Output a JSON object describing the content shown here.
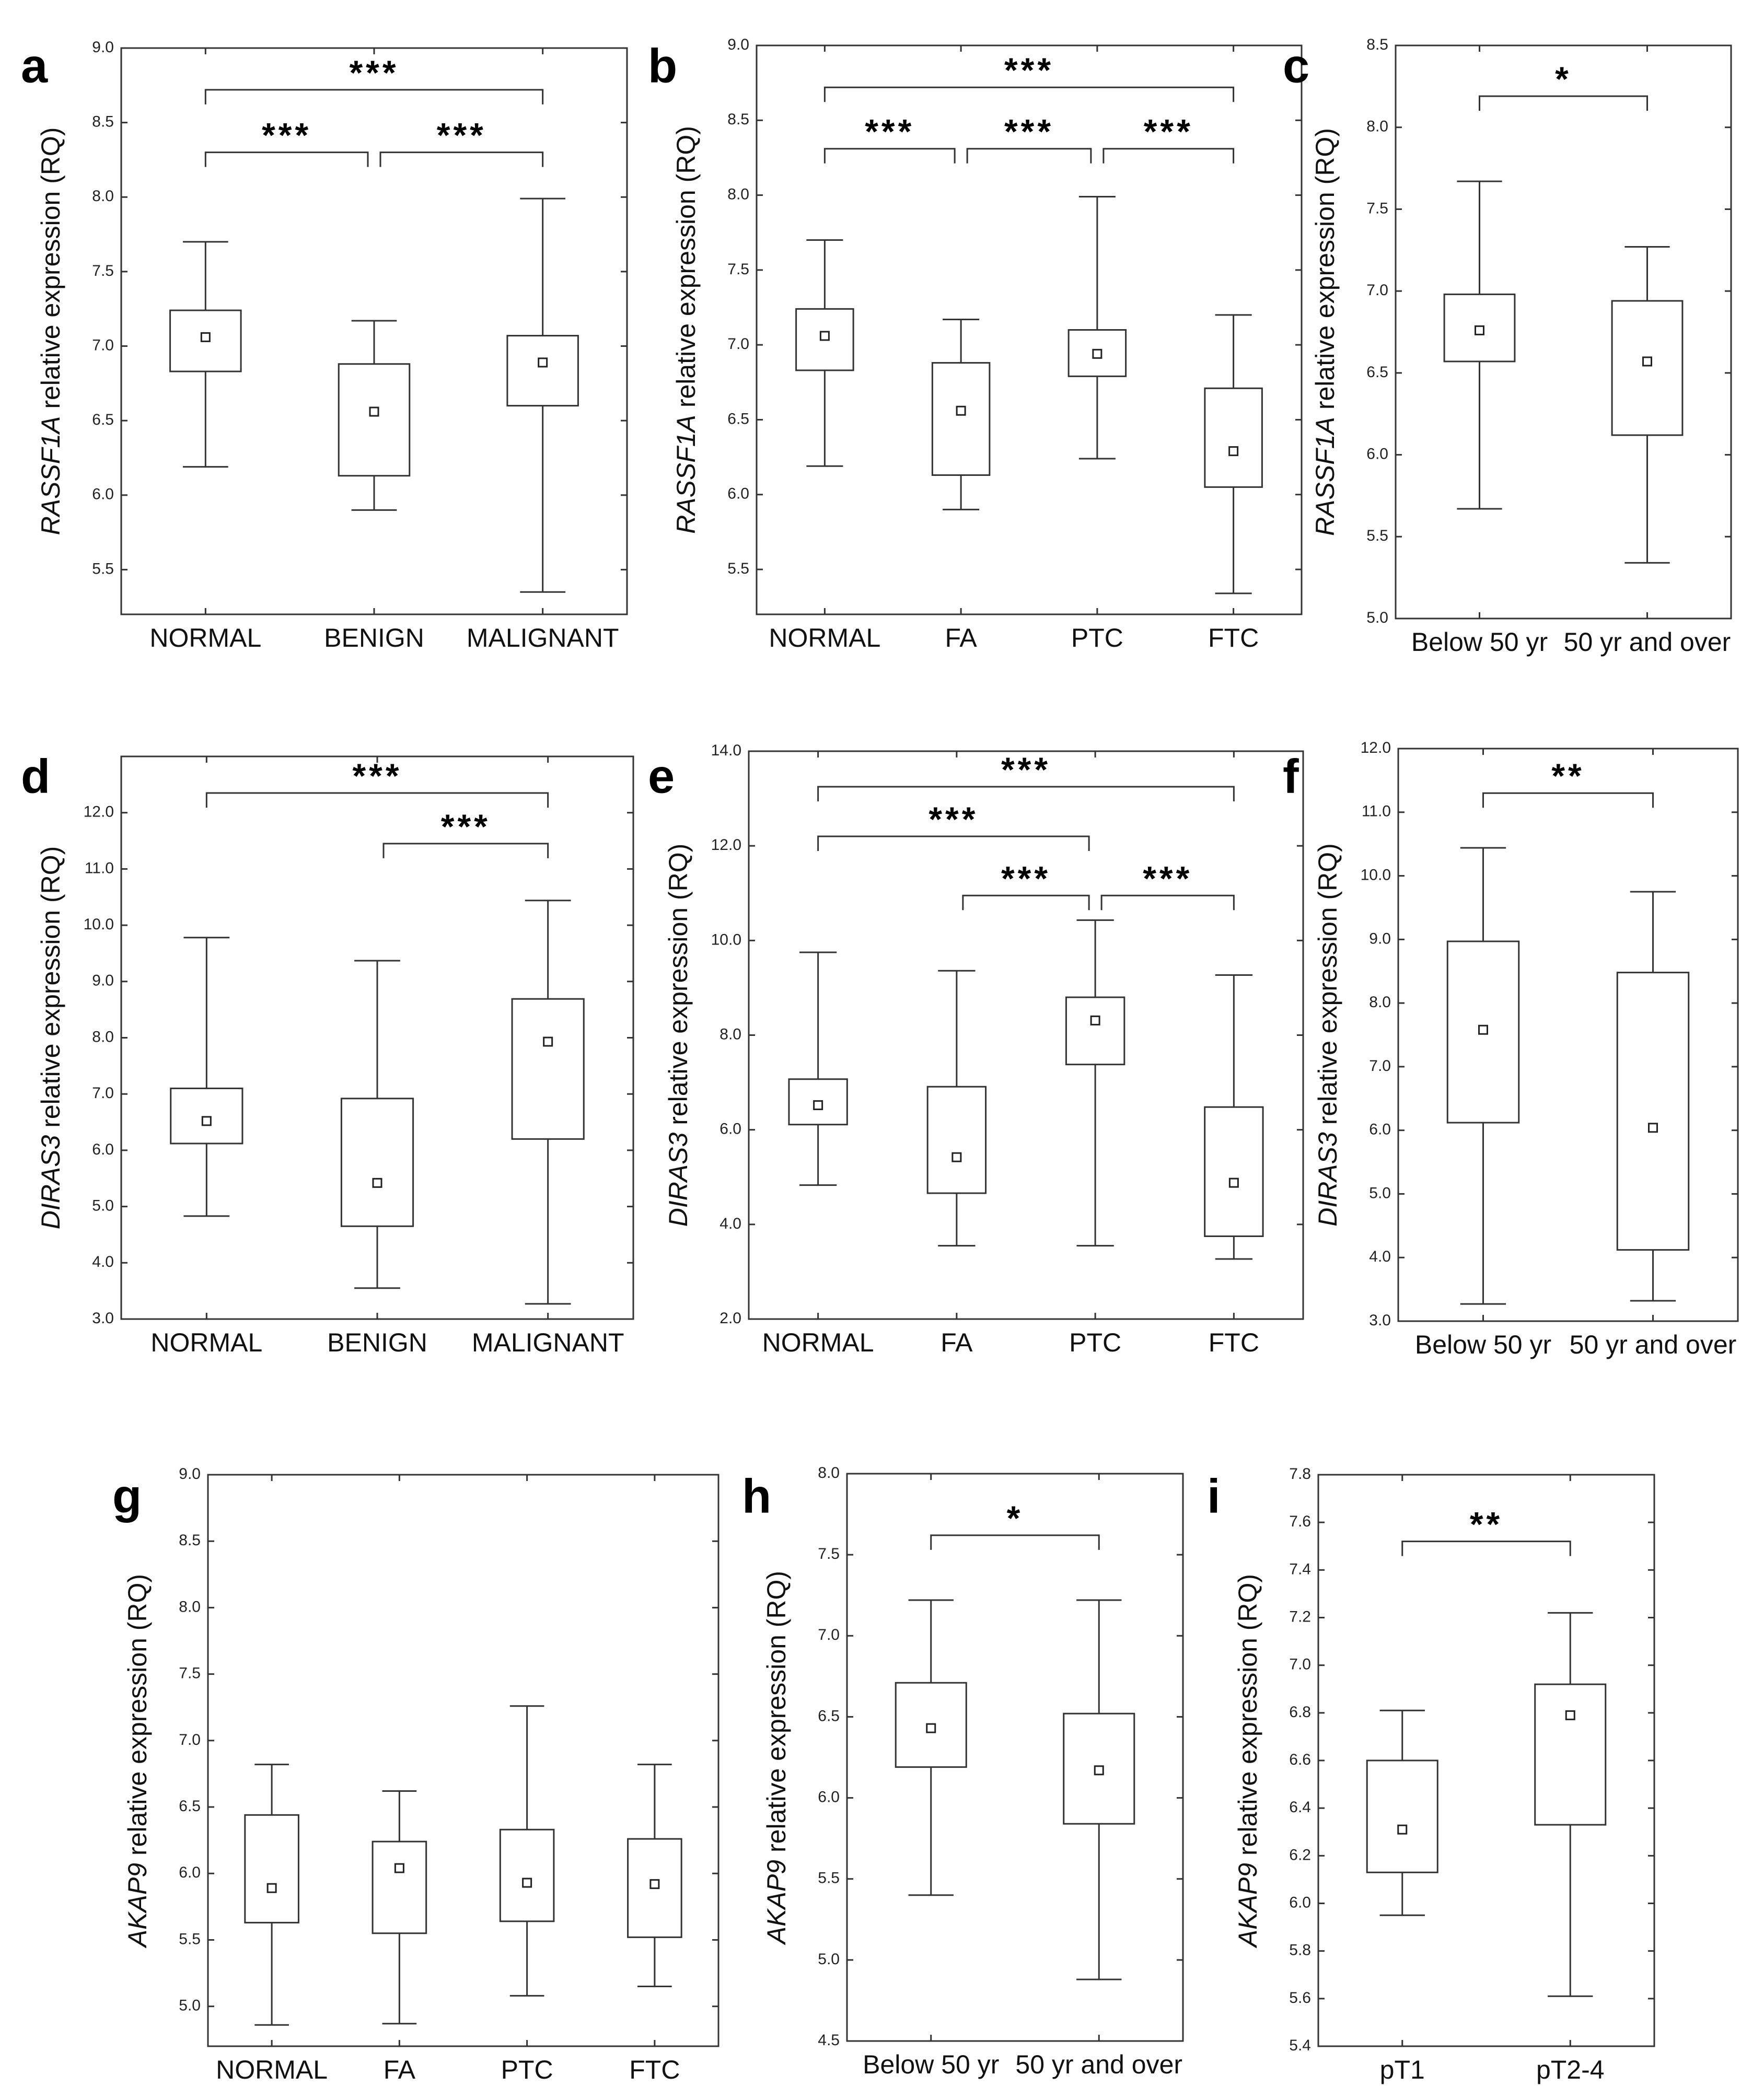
{
  "chart_data": [
    {
      "type": "box",
      "panel": "a",
      "ylabel_gene": "RASSF1A",
      "ylabel_rest": " relative expression (RQ)",
      "ylim": [
        5.2,
        9.0
      ],
      "yticks": [
        5.5,
        6.0,
        6.5,
        7.0,
        7.5,
        8.0,
        8.5,
        9.0
      ],
      "decimals": 1,
      "categories": [
        "NORMAL",
        "BENIGN",
        "MALIGNANT"
      ],
      "boxes": [
        {
          "min": 6.19,
          "q1": 6.83,
          "median": 7.06,
          "q3": 7.24,
          "max": 7.7
        },
        {
          "min": 5.9,
          "q1": 6.13,
          "median": 6.56,
          "q3": 6.88,
          "max": 7.17
        },
        {
          "min": 5.35,
          "q1": 6.6,
          "median": 6.89,
          "q3": 7.07,
          "max": 7.99
        }
      ],
      "significance": [
        {
          "from": 0,
          "to": 2,
          "label": "***",
          "y": 8.72
        },
        {
          "from": 0,
          "to": 1,
          "label": "***",
          "y": 8.3
        },
        {
          "from": 1,
          "to": 2,
          "label": "***",
          "y": 8.3
        }
      ]
    },
    {
      "type": "box",
      "panel": "b",
      "ylabel_gene": "RASSF1A",
      "ylabel_rest": " relative expression (RQ)",
      "ylim": [
        5.2,
        9.0
      ],
      "yticks": [
        5.5,
        6.0,
        6.5,
        7.0,
        7.5,
        8.0,
        8.5,
        9.0
      ],
      "decimals": 1,
      "categories": [
        "NORMAL",
        "FA",
        "PTC",
        "FTC"
      ],
      "boxes": [
        {
          "min": 6.19,
          "q1": 6.83,
          "median": 7.06,
          "q3": 7.24,
          "max": 7.7
        },
        {
          "min": 5.9,
          "q1": 6.13,
          "median": 6.56,
          "q3": 6.88,
          "max": 7.17
        },
        {
          "min": 6.24,
          "q1": 6.79,
          "median": 6.94,
          "q3": 7.1,
          "max": 7.99
        },
        {
          "min": 5.34,
          "q1": 6.05,
          "median": 6.29,
          "q3": 6.71,
          "max": 7.2
        }
      ],
      "significance": [
        {
          "from": 0,
          "to": 3,
          "label": "***",
          "y": 8.72
        },
        {
          "from": 0,
          "to": 1,
          "label": "***",
          "y": 8.31
        },
        {
          "from": 1,
          "to": 2,
          "label": "***",
          "y": 8.31
        },
        {
          "from": 2,
          "to": 3,
          "label": "***",
          "y": 8.31
        }
      ]
    },
    {
      "type": "box",
      "panel": "c",
      "ylabel_gene": "RASSF1A",
      "ylabel_rest": " relative expression (RQ)",
      "ylim": [
        5.0,
        8.5
      ],
      "yticks": [
        5.0,
        5.5,
        6.0,
        6.5,
        7.0,
        7.5,
        8.0,
        8.5
      ],
      "decimals": 1,
      "categories": [
        "Below 50 yr",
        "50 yr and over"
      ],
      "boxes": [
        {
          "min": 5.67,
          "q1": 6.57,
          "median": 6.76,
          "q3": 6.98,
          "max": 7.67
        },
        {
          "min": 5.34,
          "q1": 6.12,
          "median": 6.57,
          "q3": 6.94,
          "max": 7.27
        }
      ],
      "significance": [
        {
          "from": 0,
          "to": 1,
          "label": "*",
          "y": 8.19
        }
      ]
    },
    {
      "type": "box",
      "panel": "d",
      "ylabel_gene": "DIRAS3",
      "ylabel_rest": " relative expression (RQ)",
      "ylim": [
        3.0,
        13.0
      ],
      "yticks": [
        3.0,
        4.0,
        5.0,
        6.0,
        7.0,
        8.0,
        9.0,
        10.0,
        11.0,
        12.0
      ],
      "decimals": 1,
      "categories": [
        "NORMAL",
        "BENIGN",
        "MALIGNANT"
      ],
      "boxes": [
        {
          "min": 4.83,
          "q1": 6.12,
          "median": 6.52,
          "q3": 7.1,
          "max": 9.78
        },
        {
          "min": 3.55,
          "q1": 4.65,
          "median": 5.42,
          "q3": 6.92,
          "max": 9.37
        },
        {
          "min": 3.27,
          "q1": 6.2,
          "median": 7.93,
          "q3": 8.69,
          "max": 10.44
        }
      ],
      "significance": [
        {
          "from": 0,
          "to": 2,
          "label": "***",
          "y": 12.35
        },
        {
          "from": 1,
          "to": 2,
          "label": "***",
          "y": 11.45
        }
      ]
    },
    {
      "type": "box",
      "panel": "e",
      "ylabel_gene": "DIRAS3",
      "ylabel_rest": " relative expression (RQ)",
      "ylim": [
        2.0,
        14.0
      ],
      "yticks": [
        2.0,
        4.0,
        6.0,
        8.0,
        10.0,
        12.0,
        14.0
      ],
      "decimals": 1,
      "categories": [
        "NORMAL",
        "FA",
        "PTC",
        "FTC"
      ],
      "boxes": [
        {
          "min": 4.83,
          "q1": 6.11,
          "median": 6.52,
          "q3": 7.07,
          "max": 9.75
        },
        {
          "min": 3.55,
          "q1": 4.66,
          "median": 5.42,
          "q3": 6.91,
          "max": 9.36
        },
        {
          "min": 3.55,
          "q1": 7.38,
          "median": 8.31,
          "q3": 8.8,
          "max": 10.43
        },
        {
          "min": 3.27,
          "q1": 3.75,
          "median": 4.88,
          "q3": 6.48,
          "max": 9.27
        }
      ],
      "significance": [
        {
          "from": 0,
          "to": 3,
          "label": "***",
          "y": 13.25
        },
        {
          "from": 0,
          "to": 2,
          "label": "***",
          "y": 12.2
        },
        {
          "from": 1,
          "to": 2,
          "label": "***",
          "y": 10.95
        },
        {
          "from": 2,
          "to": 3,
          "label": "***",
          "y": 10.95
        }
      ]
    },
    {
      "type": "box",
      "panel": "f",
      "ylabel_gene": "DIRAS3",
      "ylabel_rest": " relative expression (RQ)",
      "ylim": [
        3.0,
        12.0
      ],
      "yticks": [
        3.0,
        4.0,
        5.0,
        6.0,
        7.0,
        8.0,
        9.0,
        10.0,
        11.0,
        12.0
      ],
      "decimals": 1,
      "categories": [
        "Below 50 yr",
        "50 yr and over"
      ],
      "boxes": [
        {
          "min": 3.27,
          "q1": 6.12,
          "median": 7.58,
          "q3": 8.97,
          "max": 10.44
        },
        {
          "min": 3.32,
          "q1": 4.12,
          "median": 6.04,
          "q3": 8.48,
          "max": 9.75
        }
      ],
      "significance": [
        {
          "from": 0,
          "to": 1,
          "label": "**",
          "y": 11.3
        }
      ]
    },
    {
      "type": "box",
      "panel": "g",
      "ylabel_gene": "AKAP9",
      "ylabel_rest": " relative expression (RQ)",
      "ylim": [
        4.7,
        9.0
      ],
      "yticks": [
        5.0,
        5.5,
        6.0,
        6.5,
        7.0,
        7.5,
        8.0,
        8.5,
        9.0
      ],
      "decimals": 1,
      "categories": [
        "NORMAL",
        "FA",
        "PTC",
        "FTC"
      ],
      "boxes": [
        {
          "min": 4.86,
          "q1": 5.63,
          "median": 5.89,
          "q3": 6.44,
          "max": 6.82
        },
        {
          "min": 4.87,
          "q1": 5.55,
          "median": 6.04,
          "q3": 6.24,
          "max": 6.62
        },
        {
          "min": 5.08,
          "q1": 5.64,
          "median": 5.93,
          "q3": 6.33,
          "max": 7.26
        },
        {
          "min": 5.15,
          "q1": 5.52,
          "median": 5.92,
          "q3": 6.26,
          "max": 6.82
        }
      ],
      "significance": []
    },
    {
      "type": "box",
      "panel": "h",
      "ylabel_gene": "AKAP9",
      "ylabel_rest": " relative expression (RQ)",
      "ylim": [
        4.5,
        8.0
      ],
      "yticks": [
        4.5,
        5.0,
        5.5,
        6.0,
        6.5,
        7.0,
        7.5,
        8.0
      ],
      "decimals": 1,
      "categories": [
        "Below 50 yr",
        "50 yr and over"
      ],
      "boxes": [
        {
          "min": 5.4,
          "q1": 6.19,
          "median": 6.43,
          "q3": 6.71,
          "max": 7.22
        },
        {
          "min": 4.88,
          "q1": 5.84,
          "median": 6.17,
          "q3": 6.52,
          "max": 7.22
        }
      ],
      "significance": [
        {
          "from": 0,
          "to": 1,
          "label": "*",
          "y": 7.62
        }
      ]
    },
    {
      "type": "box",
      "panel": "i",
      "ylabel_gene": "AKAP9",
      "ylabel_rest": " relative expression (RQ)",
      "ylim": [
        5.4,
        7.8
      ],
      "yticks": [
        5.4,
        5.6,
        5.8,
        6.0,
        6.2,
        6.4,
        6.6,
        6.8,
        7.0,
        7.2,
        7.4,
        7.6,
        7.8
      ],
      "decimals": 1,
      "categories": [
        "pT1",
        "pT2-4"
      ],
      "boxes": [
        {
          "min": 5.95,
          "q1": 6.13,
          "median": 6.31,
          "q3": 6.6,
          "max": 6.81
        },
        {
          "min": 5.61,
          "q1": 6.33,
          "median": 6.79,
          "q3": 6.92,
          "max": 7.22
        }
      ],
      "significance": [
        {
          "from": 0,
          "to": 1,
          "label": "**",
          "y": 7.52
        }
      ]
    }
  ]
}
